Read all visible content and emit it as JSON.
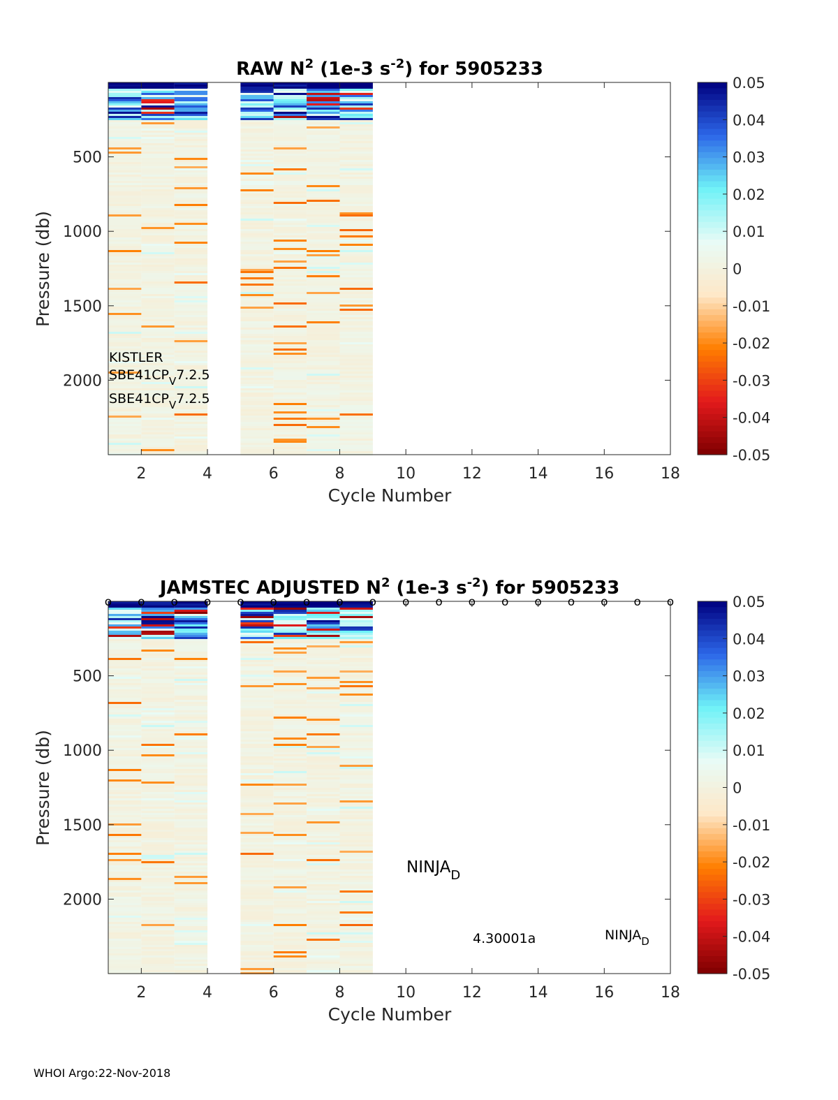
{
  "footer": "WHOI Argo:22-Nov-2018",
  "colors": {
    "colormap": [
      "#7f0000",
      "#e31a1c",
      "#ff7f00",
      "#fee8c8",
      "#e8fbf6",
      "#6ff2f7",
      "#2c67e8",
      "#00007f"
    ]
  },
  "chart_data": [
    {
      "type": "heatmap",
      "title_prefix": "RAW N",
      "title_sup1": "2",
      "title_mid": " (1e-3 s",
      "title_sup2": "-2",
      "title_suffix": ") for 5905233",
      "xlabel": "Cycle Number",
      "ylabel": "Pressure (db)",
      "xlim": [
        1,
        18
      ],
      "ylim": [
        0,
        2500
      ],
      "y_reversed": true,
      "x_ticks": [
        2,
        4,
        6,
        8,
        10,
        12,
        14,
        16,
        18
      ],
      "x_tick_labels": [
        "2",
        "4",
        "6",
        "8",
        "10",
        "12",
        "14",
        "16",
        "18"
      ],
      "y_ticks": [
        500,
        1000,
        1500,
        2000
      ],
      "y_tick_labels": [
        "500",
        "1000",
        "1500",
        "2000"
      ],
      "cycles_with_data": [
        1,
        2,
        3,
        5,
        6,
        7,
        8
      ],
      "missing_cycles": [
        4
      ],
      "colorbar": {
        "range": [
          -0.05,
          0.05
        ],
        "ticks": [
          0.05,
          0.04,
          0.03,
          0.02,
          0.01,
          0,
          -0.01,
          -0.02,
          -0.03,
          -0.04,
          -0.05
        ],
        "tick_labels": [
          "0.05",
          "0.04",
          "0.03",
          "0.02",
          "0.01",
          "0",
          "-0.01",
          "-0.02",
          "-0.03",
          "-0.04",
          "-0.05"
        ]
      },
      "annotations": {
        "line1": "KISTLER",
        "line2_main": "SBE41CP",
        "line2_sub": "V",
        "line2_rest": "7.2.5",
        "line3_main": "SBE41CP",
        "line3_sub": "V",
        "line3_rest": "7.2.5"
      }
    },
    {
      "type": "heatmap",
      "title_prefix": "JAMSTEC  ADJUSTED N",
      "title_sup1": "2",
      "title_mid": " (1e-3 s",
      "title_sup2": "-2",
      "title_suffix": ") for 5905233",
      "xlabel": "Cycle Number",
      "ylabel": "Pressure (db)",
      "xlim": [
        1,
        18
      ],
      "ylim": [
        0,
        2500
      ],
      "y_reversed": true,
      "x_ticks": [
        2,
        4,
        6,
        8,
        10,
        12,
        14,
        16,
        18
      ],
      "x_tick_labels": [
        "2",
        "4",
        "6",
        "8",
        "10",
        "12",
        "14",
        "16",
        "18"
      ],
      "y_ticks": [
        500,
        1000,
        1500,
        2000
      ],
      "y_tick_labels": [
        "500",
        "1000",
        "1500",
        "2000"
      ],
      "cycles_with_data": [
        1,
        2,
        3,
        5,
        6,
        7,
        8
      ],
      "missing_cycles": [
        4
      ],
      "qc_marker_char": "o",
      "qc_marker_cycles": [
        1,
        2,
        3,
        4,
        5,
        6,
        7,
        8,
        9,
        10,
        11,
        12,
        13,
        14,
        15,
        16,
        17,
        18
      ],
      "colorbar": {
        "range": [
          -0.05,
          0.05
        ],
        "ticks": [
          0.05,
          0.04,
          0.03,
          0.02,
          0.01,
          0,
          -0.01,
          -0.02,
          -0.03,
          -0.04,
          -0.05
        ],
        "tick_labels": [
          "0.05",
          "0.04",
          "0.03",
          "0.02",
          "0.01",
          "0",
          "-0.01",
          "-0.02",
          "-0.03",
          "-0.04",
          "-0.05"
        ]
      },
      "annotations": {
        "ninja1_main": "NINJA",
        "ninja1_sub": "D",
        "version": "4.30001a",
        "ninja2_main": "NINJA",
        "ninja2_sub": "D"
      }
    }
  ]
}
